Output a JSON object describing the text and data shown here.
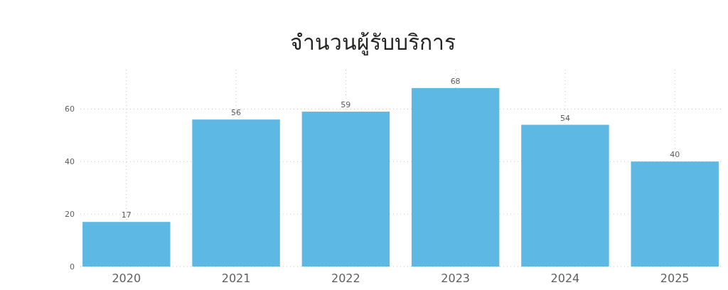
{
  "chart_data": {
    "type": "bar",
    "title": "จำนวนผู้รับบริการ",
    "categories": [
      "2020",
      "2021",
      "2022",
      "2023",
      "2024",
      "2025"
    ],
    "values": [
      17,
      56,
      59,
      68,
      54,
      40
    ],
    "data_labels": true,
    "color": "#5eb8e4",
    "ylim": [
      0,
      75
    ],
    "yticks": [
      0,
      20,
      40,
      60
    ],
    "grid": true
  }
}
